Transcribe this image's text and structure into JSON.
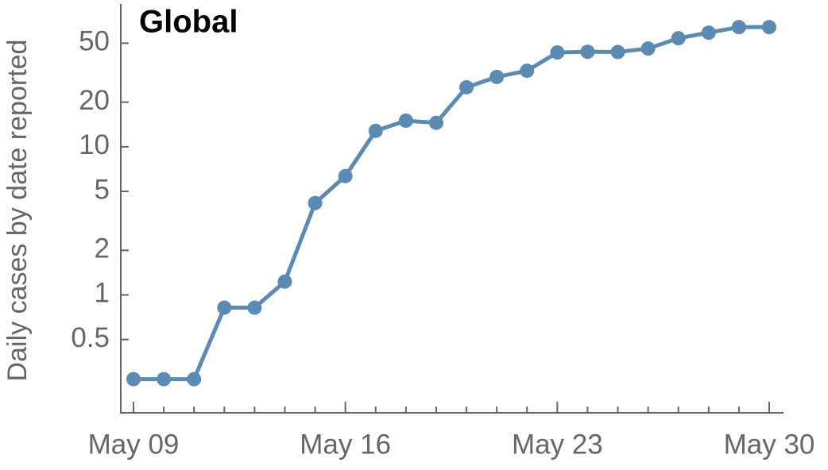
{
  "chart_data": {
    "type": "line",
    "title": "Global",
    "y_label": "Daily cases by date reported",
    "categories": [
      "May 09",
      null,
      null,
      null,
      null,
      null,
      null,
      "May 16",
      null,
      null,
      null,
      null,
      null,
      null,
      "May 23",
      null,
      null,
      null,
      null,
      null,
      null,
      "May 30"
    ],
    "series": [
      {
        "name": "Global",
        "color": "#5b8bb2",
        "values": [
          0.27,
          0.27,
          0.27,
          0.82,
          0.82,
          1.23,
          4.17,
          6.34,
          12.8,
          15.0,
          14.5,
          25.2,
          29.6,
          32.6,
          43.3,
          43.8,
          43.6,
          46.0,
          54.0,
          58.9,
          64.2,
          64.2
        ]
      }
    ],
    "ylim": [
      0.16,
      92
    ],
    "yticks": [
      0.5,
      1,
      2,
      5,
      10,
      20,
      50
    ],
    "log_y": true,
    "grid": false
  }
}
